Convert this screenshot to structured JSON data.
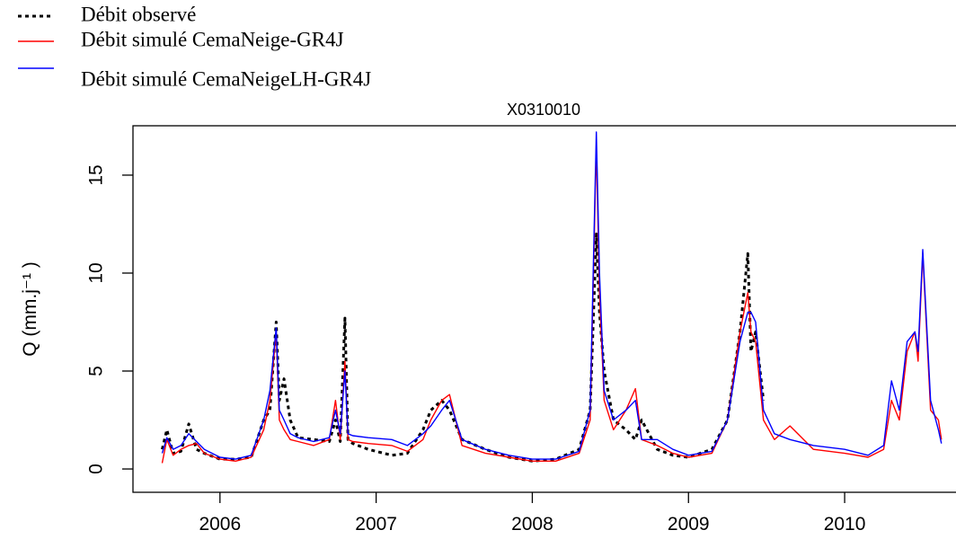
{
  "chart_data": {
    "type": "line",
    "title": "X0310010",
    "ylabel": "Q (mm.j⁻¹ )",
    "x": [
      2005.63,
      2005.66,
      2005.7,
      2005.75,
      2005.8,
      2005.85,
      2005.9,
      2006.0,
      2006.1,
      2006.2,
      2006.28,
      2006.32,
      2006.36,
      2006.38,
      2006.41,
      2006.45,
      2006.5,
      2006.6,
      2006.7,
      2006.74,
      2006.77,
      2006.8,
      2006.82,
      2006.85,
      2006.95,
      2007.1,
      2007.2,
      2007.3,
      2007.35,
      2007.42,
      2007.47,
      2007.55,
      2007.7,
      2007.85,
      2008.0,
      2008.15,
      2008.3,
      2008.37,
      2008.41,
      2008.43,
      2008.46,
      2008.52,
      2008.6,
      2008.66,
      2008.7,
      2008.8,
      2008.9,
      2009.0,
      2009.15,
      2009.25,
      2009.33,
      2009.38,
      2009.4,
      2009.43,
      2009.48,
      2009.55,
      2009.65,
      2009.8,
      2010.0,
      2010.15,
      2010.25,
      2010.3,
      2010.35,
      2010.4,
      2010.45,
      2010.47,
      2010.5,
      2010.55,
      2010.6,
      2010.62
    ],
    "series": [
      {
        "name": "Débit observé",
        "color": "#000000",
        "linestyle": "dotted",
        "values": [
          1.0,
          2.0,
          0.8,
          0.9,
          2.3,
          1.0,
          0.8,
          0.5,
          0.5,
          0.6,
          2.5,
          3.0,
          7.5,
          3.5,
          4.6,
          2.5,
          1.6,
          1.5,
          1.4,
          2.5,
          1.4,
          7.7,
          1.5,
          1.3,
          1.0,
          0.7,
          0.8,
          2.0,
          3.0,
          3.5,
          3.0,
          1.5,
          1.0,
          0.6,
          0.4,
          0.5,
          1.0,
          3.0,
          12.0,
          8.0,
          5.0,
          2.5,
          2.0,
          1.5,
          2.5,
          1.0,
          0.7,
          0.6,
          1.0,
          2.5,
          7.0,
          11.0,
          6.0,
          7.0,
          3.5,
          null,
          null,
          null,
          null,
          null,
          null,
          null,
          null,
          null,
          null,
          null,
          null,
          null,
          null,
          null
        ]
      },
      {
        "name": "Débit simulé CemaNeige-GR4J",
        "color": "#ff0000",
        "linestyle": "solid",
        "values": [
          0.3,
          1.5,
          0.7,
          1.0,
          1.2,
          1.3,
          0.8,
          0.5,
          0.4,
          0.6,
          2.0,
          3.5,
          7.0,
          2.5,
          2.0,
          1.5,
          1.4,
          1.2,
          1.5,
          3.5,
          1.5,
          5.5,
          1.5,
          1.4,
          1.3,
          1.2,
          0.9,
          1.5,
          2.5,
          3.5,
          3.8,
          1.2,
          0.8,
          0.6,
          0.4,
          0.4,
          0.8,
          2.5,
          16.5,
          9.0,
          3.5,
          2.0,
          3.0,
          4.1,
          1.5,
          1.2,
          0.8,
          0.6,
          0.8,
          2.5,
          7.0,
          9.0,
          7.0,
          6.5,
          2.5,
          1.5,
          2.2,
          1.0,
          0.8,
          0.6,
          1.0,
          3.5,
          2.5,
          6.0,
          7.0,
          5.5,
          11.0,
          3.0,
          2.5,
          1.5
        ]
      },
      {
        "name": "Débit simulé CemaNeigeLH-GR4J",
        "color": "#0000ff",
        "linestyle": "solid",
        "values": [
          0.8,
          1.6,
          1.0,
          1.2,
          1.8,
          1.4,
          1.0,
          0.6,
          0.5,
          0.7,
          2.5,
          4.0,
          7.2,
          3.0,
          2.5,
          1.8,
          1.6,
          1.4,
          1.6,
          3.0,
          1.8,
          5.0,
          1.8,
          1.7,
          1.6,
          1.5,
          1.2,
          1.8,
          2.2,
          3.0,
          3.5,
          1.5,
          1.0,
          0.7,
          0.5,
          0.5,
          0.9,
          3.0,
          17.2,
          10.0,
          4.0,
          2.5,
          3.0,
          3.5,
          1.5,
          1.5,
          1.0,
          0.7,
          0.9,
          2.5,
          6.5,
          8.0,
          8.0,
          7.5,
          3.0,
          1.8,
          1.5,
          1.2,
          1.0,
          0.7,
          1.2,
          4.5,
          3.0,
          6.5,
          7.0,
          6.0,
          11.2,
          3.5,
          2.0,
          1.3
        ]
      }
    ],
    "xlim": [
      2005.443,
      2010.713
    ],
    "xticks": [
      2006,
      2007,
      2008,
      2009,
      2010
    ],
    "ylim": [
      -1.19,
      17.52
    ],
    "yticks": [
      0,
      5,
      10,
      15
    ],
    "legend": "top-left",
    "grid": false
  }
}
